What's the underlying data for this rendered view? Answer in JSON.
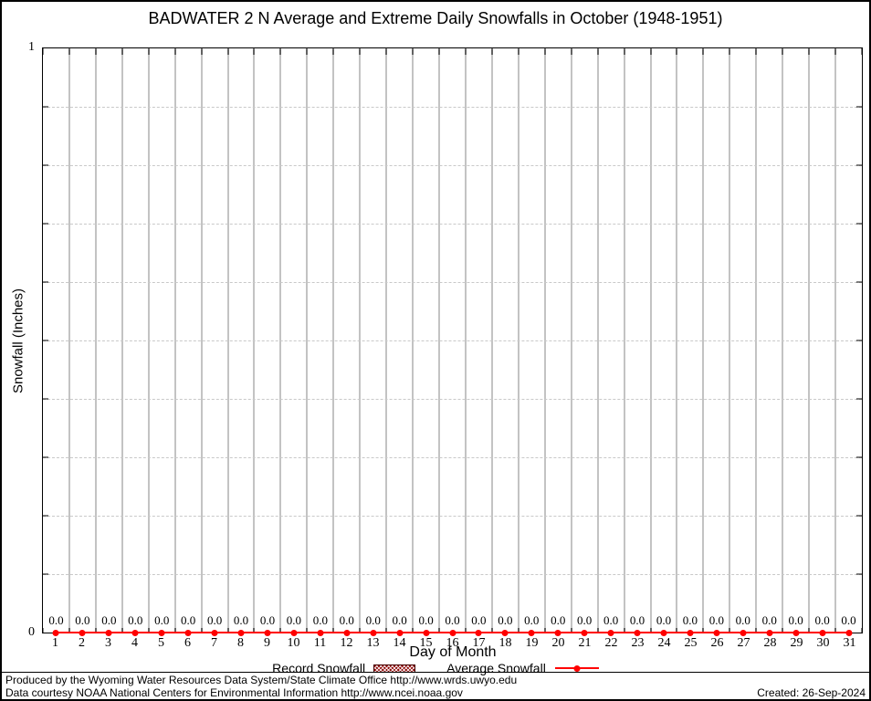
{
  "chart_data": {
    "type": "line",
    "title": "BADWATER 2 N Average and Extreme Daily Snowfalls in October (1948-1951)",
    "xlabel": "Day of Month",
    "ylabel": "Snowfall (Inches)",
    "x": [
      1,
      2,
      3,
      4,
      5,
      6,
      7,
      8,
      9,
      10,
      11,
      12,
      13,
      14,
      15,
      16,
      17,
      18,
      19,
      20,
      21,
      22,
      23,
      24,
      25,
      26,
      27,
      28,
      29,
      30,
      31
    ],
    "xlim": [
      0.5,
      31.5
    ],
    "ylim": [
      0,
      1
    ],
    "ytick_labels_shown": [
      "0",
      "1"
    ],
    "ytick_interval": 0.1,
    "grid": {
      "vertical": "solid gray lines between days",
      "horizontal": "dashed gray lines every 0.1"
    },
    "legend_position": "bottom-center",
    "series": [
      {
        "name": "Record Snowfall",
        "style": "boxes-hatched",
        "color": "#8b0000",
        "values": [
          0,
          0,
          0,
          0,
          0,
          0,
          0,
          0,
          0,
          0,
          0,
          0,
          0,
          0,
          0,
          0,
          0,
          0,
          0,
          0,
          0,
          0,
          0,
          0,
          0,
          0,
          0,
          0,
          0,
          0,
          0
        ]
      },
      {
        "name": "Average Snowfall",
        "style": "linespoints",
        "color": "#ff0000",
        "values": [
          0,
          0,
          0,
          0,
          0,
          0,
          0,
          0,
          0,
          0,
          0,
          0,
          0,
          0,
          0,
          0,
          0,
          0,
          0,
          0,
          0,
          0,
          0,
          0,
          0,
          0,
          0,
          0,
          0,
          0,
          0
        ]
      }
    ],
    "value_labels": [
      "0.0",
      "0.0",
      "0.0",
      "0.0",
      "0.0",
      "0.0",
      "0.0",
      "0.0",
      "0.0",
      "0.0",
      "0.0",
      "0.0",
      "0.0",
      "0.0",
      "0.0",
      "0.0",
      "0.0",
      "0.0",
      "0.0",
      "0.0",
      "0.0",
      "0.0",
      "0.0",
      "0.0",
      "0.0",
      "0.0",
      "0.0",
      "0.0",
      "0.0",
      "0.0",
      "0.0"
    ]
  },
  "axis": {
    "y_top_label": "1",
    "y_bottom_label": "0"
  },
  "colors": {
    "average_line": "#ff0000",
    "record_box": "#8b0000",
    "grid": "#c3c3c3",
    "border": "#000000",
    "background": "#ffffff"
  },
  "footer": {
    "line1": "Produced by the Wyoming Water Resources Data System/State Climate Office http://www.wrds.uwyo.edu",
    "line2": "Data courtesy NOAA National Centers for Environmental Information http://www.ncei.noaa.gov",
    "created": "Created: 26-Sep-2024"
  }
}
